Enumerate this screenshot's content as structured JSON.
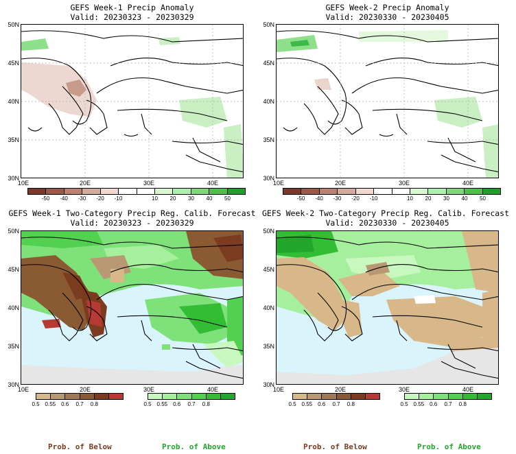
{
  "panels": {
    "tl": {
      "title": "GEFS Week-1 Precip Anomaly",
      "valid": "Valid: 20230323 - 20230329"
    },
    "tr": {
      "title": "GEFS Week-2 Precip Anomaly",
      "valid": "Valid: 20230330 - 20230405"
    },
    "bl": {
      "title": "GEFS Week-1 Two-Category Precip Reg. Calib. Forecast",
      "valid": "Valid: 20230323 - 20230329"
    },
    "br": {
      "title": "GEFS Week-2 Two-Category Precip Reg. Calib. Forecast",
      "valid": "Valid: 20230330 - 20230405"
    }
  },
  "axes": {
    "lat": [
      "50N",
      "45N",
      "40N",
      "35N",
      "30N"
    ],
    "lon": [
      "10E",
      "20E",
      "30E",
      "40E"
    ]
  },
  "anomaly_colorbar": {
    "colors": [
      "#7a3b2a",
      "#9b5a48",
      "#b88170",
      "#d4aa9c",
      "#f0d8cf",
      "#ffffff",
      "#ffffff",
      "#d8f7d0",
      "#aeeeae",
      "#7ed87a",
      "#4cc24a",
      "#1f9e2a"
    ],
    "labels": [
      "-50",
      "-40",
      "-30",
      "-20",
      "-10",
      "10",
      "20",
      "30",
      "40",
      "50"
    ]
  },
  "prob_below_colorbar": {
    "colors": [
      "#d8b889",
      "#b99973",
      "#a07a55",
      "#8a5a32",
      "#7b3b1f",
      "#b63a34"
    ],
    "labels": [
      "0.5",
      "0.55",
      "0.6",
      "0.7",
      "0.8"
    ]
  },
  "prob_above_colorbar": {
    "colors": [
      "#c8f7bf",
      "#a6ef9c",
      "#7fe17a",
      "#52d04f",
      "#33bd35",
      "#22a62c"
    ],
    "labels": [
      "0.5",
      "0.55",
      "0.6",
      "0.7",
      "0.8"
    ]
  },
  "legend": {
    "below": "Prob. of Below",
    "above": "Prob. of Above"
  },
  "colors": {
    "below_text": "#7b3b1f",
    "above_text": "#22a62c",
    "sea": "#d9f5fb",
    "nodata": "#e6e6e6"
  }
}
